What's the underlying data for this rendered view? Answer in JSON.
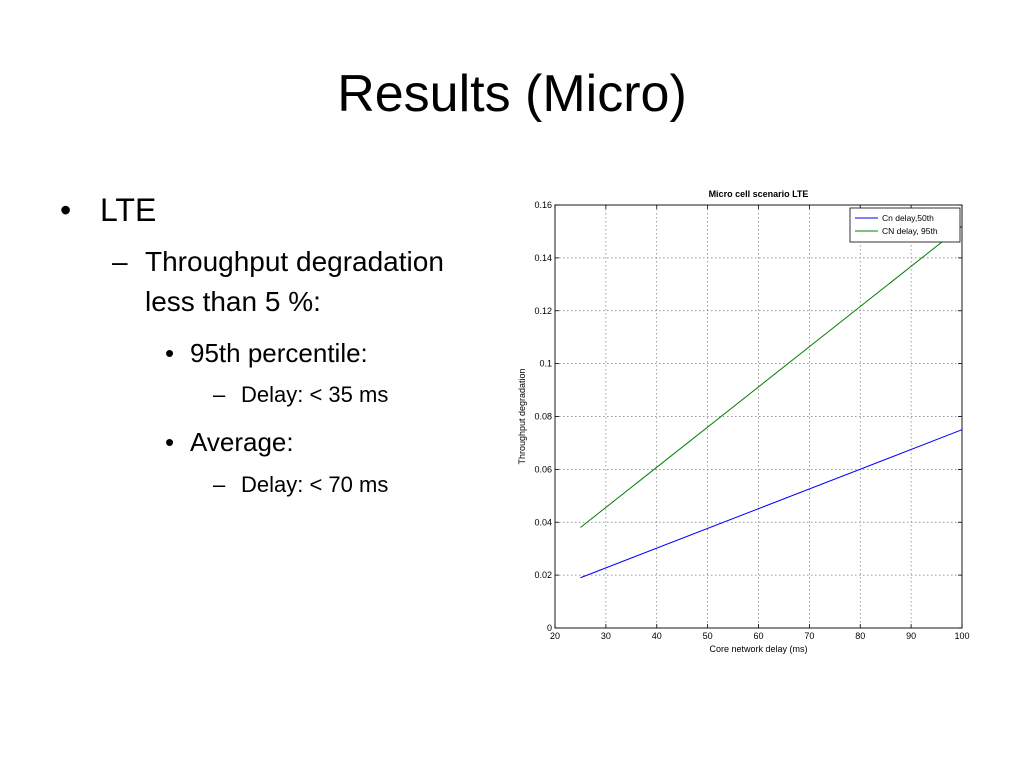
{
  "slide": {
    "title": "Results (Micro)",
    "bullets": [
      {
        "marker": "•",
        "text": "LTE"
      },
      {
        "marker": "–",
        "text": "Throughput degradation"
      },
      {
        "marker": "",
        "text": "less than 5 %:"
      },
      {
        "marker": "•",
        "text": "95th percentile:"
      },
      {
        "marker": "–",
        "text": "Delay: < 35 ms"
      },
      {
        "marker": "•",
        "text": "Average:"
      },
      {
        "marker": "–",
        "text": "Delay: < 70 ms"
      }
    ]
  },
  "chart_data": {
    "type": "line",
    "title": "Micro cell scenario LTE",
    "xlabel": "Core network delay (ms)",
    "ylabel": "Throughput degradation",
    "xlim": [
      20,
      100
    ],
    "ylim": [
      0,
      0.16
    ],
    "xticks": [
      "20",
      "30",
      "40",
      "50",
      "60",
      "70",
      "80",
      "90",
      "100"
    ],
    "yticks": [
      "0",
      "0.02",
      "0.04",
      "0.06",
      "0.08",
      "0.1",
      "0.12",
      "0.14",
      "0.16"
    ],
    "grid": true,
    "legend_position": "top-right",
    "series": [
      {
        "name": "Cn delay,50th",
        "color": "#0000ff",
        "x": [
          25,
          100
        ],
        "y": [
          0.019,
          0.075
        ]
      },
      {
        "name": "CN delay, 95th",
        "color": "#008000",
        "x": [
          25,
          100
        ],
        "y": [
          0.038,
          0.152
        ]
      }
    ]
  }
}
